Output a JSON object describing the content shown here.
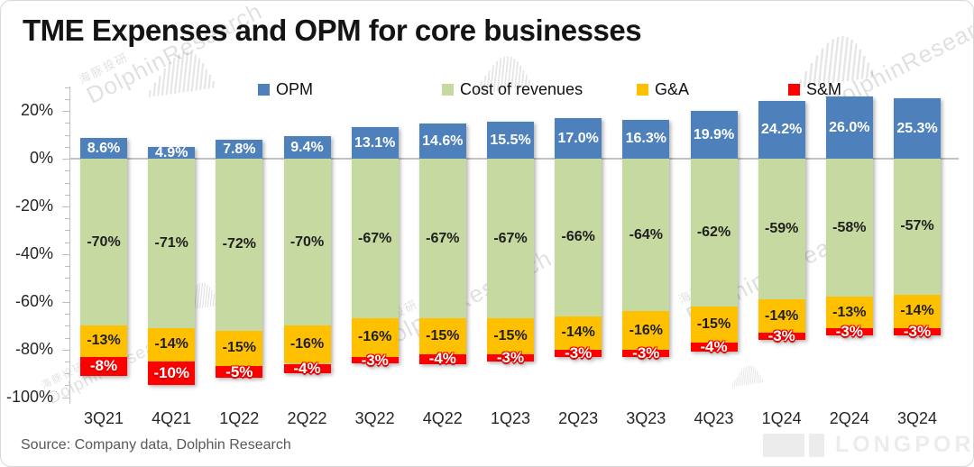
{
  "header": {
    "title": "TME Expenses and OPM for core businesses"
  },
  "source_note": "Source: Company data, Dolphin Research",
  "watermarks": {
    "cn": "海豚投研",
    "en": "DolphinResearch",
    "longport": "LONGPORT"
  },
  "chart_data": {
    "type": "bar",
    "subtype": "stacked",
    "title": "TME Expenses and OPM for core businesses",
    "categories": [
      "3Q21",
      "4Q21",
      "1Q22",
      "2Q22",
      "3Q22",
      "4Q22",
      "1Q23",
      "2Q23",
      "3Q23",
      "4Q23",
      "1Q24",
      "2Q24",
      "3Q24"
    ],
    "series": [
      {
        "name": "OPM",
        "key": "opm",
        "color": "#4E80BC",
        "label_color": "#FFFFFF",
        "decimals": 1,
        "values": [
          8.6,
          4.9,
          7.8,
          9.4,
          13.1,
          14.6,
          15.5,
          17.0,
          16.3,
          19.9,
          24.2,
          26.0,
          25.3
        ]
      },
      {
        "name": "Cost of revenues",
        "key": "cost-of-revenues",
        "color": "#C6D9A0",
        "label_color": "#1F1F1F",
        "decimals": 0,
        "values": [
          -70,
          -71,
          -72,
          -70,
          -67,
          -67,
          -67,
          -66,
          -64,
          -62,
          -59,
          -58,
          -57
        ]
      },
      {
        "name": "G&A",
        "key": "ga",
        "color": "#FFC000",
        "label_color": "#1F1F1F",
        "decimals": 0,
        "values": [
          -13,
          -14,
          -15,
          -16,
          -16,
          -15,
          -15,
          -14,
          -16,
          -15,
          -14,
          -13,
          -14
        ]
      },
      {
        "name": "S&M",
        "key": "sm",
        "color": "#FF0000",
        "label_color": "#FFFFFF",
        "decimals": 0,
        "values": [
          -8,
          -10,
          -5,
          -4,
          -3,
          -4,
          -3,
          -3,
          -3,
          -4,
          -3,
          -3,
          -3
        ]
      }
    ],
    "y_axis": {
      "tick_labels": [
        "20%",
        "0%",
        "-20%",
        "-40%",
        "-60%",
        "-80%",
        "-100%"
      ],
      "major_tick_values": [
        20,
        0,
        -20,
        -40,
        -60,
        -80,
        -100
      ],
      "minor_step": 5,
      "axis_max": 30,
      "axis_min": -103
    },
    "legend_position": "top",
    "gridlines": "zero-line-only",
    "xlabel": "",
    "ylabel": ""
  }
}
